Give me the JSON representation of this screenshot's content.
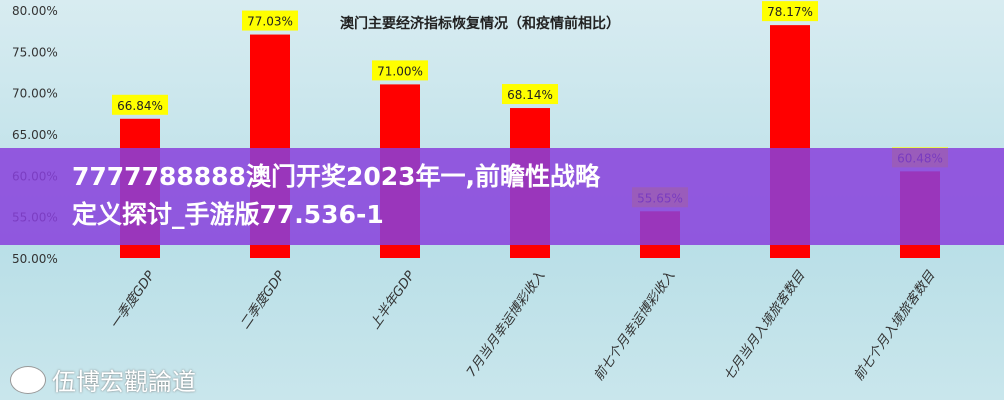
{
  "chart_data": {
    "type": "bar",
    "title": "澳门主要经济指标恢复情况（和疫情前相比）",
    "categories": [
      "一季度GDP",
      "二季度GDP",
      "上半年GDP",
      "7月当月幸运博彩收入",
      "前七个月幸运博彩收入",
      "七月当月入境旅客数目",
      "前七个月入境旅客数目"
    ],
    "values": [
      66.84,
      77.03,
      71.0,
      68.14,
      55.65,
      78.17,
      60.48
    ],
    "data_labels": [
      "66.84%",
      "77.03%",
      "71.00%",
      "68.14%",
      "55.65%",
      "78.17%",
      "60.48%"
    ],
    "ylim": [
      50,
      80
    ],
    "yticks": [
      "50.00%",
      "55.00%",
      "60.00%",
      "65.00%",
      "70.00%",
      "75.00%",
      "80.00%"
    ],
    "xlabel": "",
    "ylabel": "",
    "grid": false,
    "colors": {
      "bar": "#ff0000",
      "label_bg": "#ffff00"
    }
  },
  "overlay": {
    "headline": "7777788888澳门开奖2023年一,前瞻性战略定义探讨_手游版77.536-1"
  },
  "watermark": "伍博宏觀論道"
}
